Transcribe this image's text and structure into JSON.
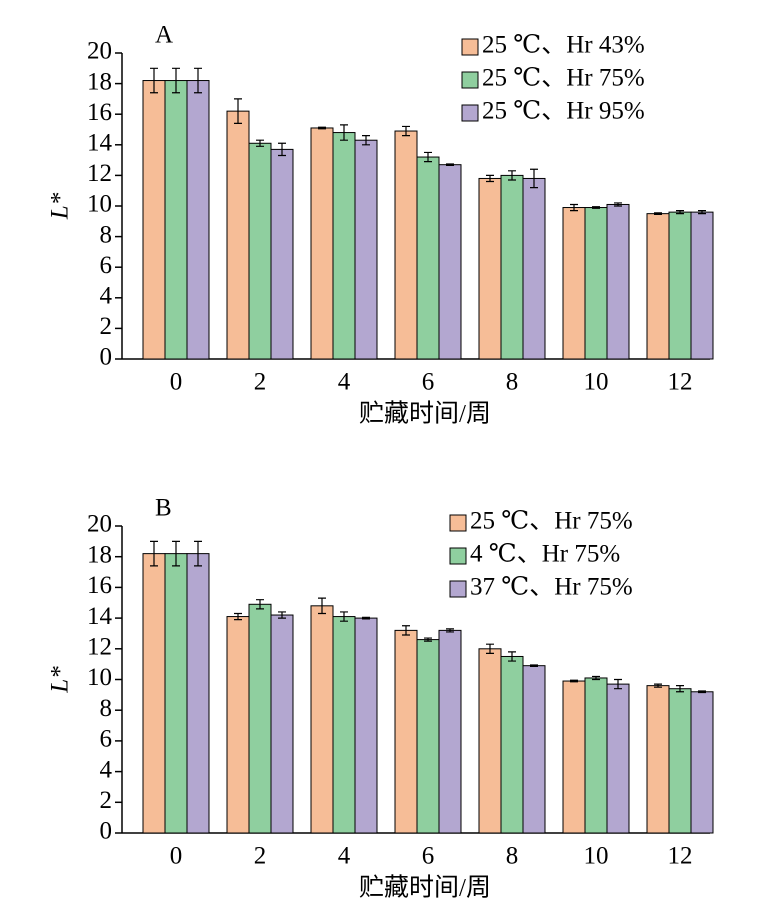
{
  "chart_data": [
    {
      "type": "bar",
      "panel_label": "A",
      "x_label": "贮藏时间/周",
      "y_label": "L*",
      "categories": [
        "0",
        "2",
        "4",
        "6",
        "8",
        "10",
        "12"
      ],
      "ylim": [
        0,
        20
      ],
      "yticks": [
        0,
        2,
        4,
        6,
        8,
        10,
        12,
        14,
        16,
        18,
        20
      ],
      "series": [
        {
          "name": "25 ℃、Hr 43%",
          "color": "#f6bd97",
          "values": [
            18.2,
            16.2,
            15.1,
            14.9,
            11.8,
            9.9,
            9.5
          ],
          "errors": [
            0.8,
            0.8,
            0.05,
            0.3,
            0.2,
            0.2,
            0.05
          ]
        },
        {
          "name": "25 ℃、Hr 75%",
          "color": "#8fcf9f",
          "values": [
            18.2,
            14.1,
            14.8,
            13.2,
            12.0,
            9.9,
            9.6
          ],
          "errors": [
            0.8,
            0.2,
            0.5,
            0.3,
            0.3,
            0.05,
            0.1
          ]
        },
        {
          "name": "25 ℃、Hr 95%",
          "color": "#b3a7d0",
          "values": [
            18.2,
            13.7,
            14.3,
            12.7,
            11.8,
            10.1,
            9.6
          ],
          "errors": [
            0.8,
            0.4,
            0.3,
            0.05,
            0.6,
            0.1,
            0.1
          ]
        }
      ]
    },
    {
      "type": "bar",
      "panel_label": "B",
      "x_label": "贮藏时间/周",
      "y_label": "L*",
      "categories": [
        "0",
        "2",
        "4",
        "6",
        "8",
        "10",
        "12"
      ],
      "ylim": [
        0,
        20
      ],
      "yticks": [
        0,
        2,
        4,
        6,
        8,
        10,
        12,
        14,
        16,
        18,
        20
      ],
      "series": [
        {
          "name": "25 ℃、Hr 75%",
          "color": "#f6bd97",
          "values": [
            18.2,
            14.1,
            14.8,
            13.2,
            12.0,
            9.9,
            9.6
          ],
          "errors": [
            0.8,
            0.2,
            0.5,
            0.3,
            0.3,
            0.05,
            0.1
          ]
        },
        {
          "name": "4 ℃、Hr 75%",
          "color": "#8fcf9f",
          "values": [
            18.2,
            14.9,
            14.1,
            12.6,
            11.5,
            10.1,
            9.4
          ],
          "errors": [
            0.8,
            0.3,
            0.3,
            0.1,
            0.3,
            0.1,
            0.2
          ]
        },
        {
          "name": "37 ℃、Hr 75%",
          "color": "#b3a7d0",
          "values": [
            18.2,
            14.2,
            14.0,
            13.2,
            10.9,
            9.7,
            9.2
          ],
          "errors": [
            0.8,
            0.2,
            0.05,
            0.1,
            0.05,
            0.3,
            0.05
          ]
        }
      ]
    }
  ]
}
